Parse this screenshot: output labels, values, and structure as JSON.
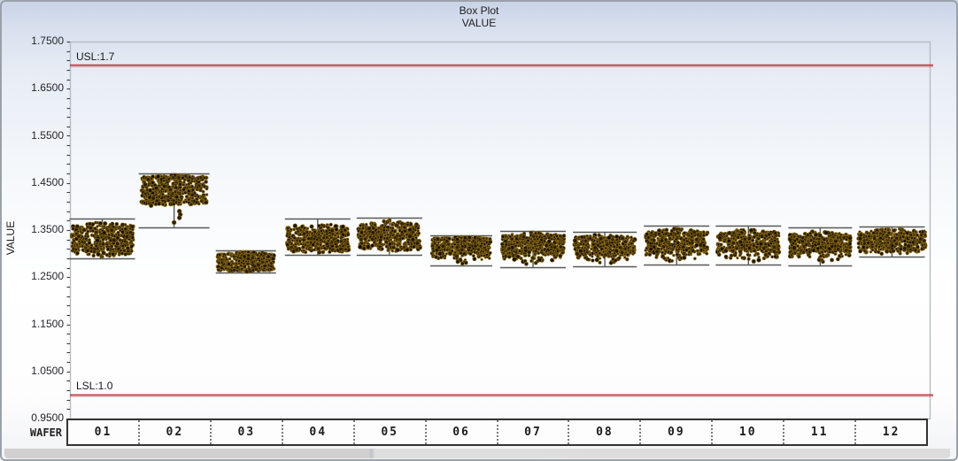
{
  "chart_data": {
    "type": "box-scatter",
    "title": "Box Plot",
    "subtitle": "VALUE",
    "ylabel": "VALUE",
    "xlabel": "WAFER",
    "ylim": [
      0.95,
      1.75
    ],
    "ytick_step": 0.1,
    "ytick_minor_step": 0.02,
    "ytick_labels": [
      "1.7500",
      "1.6500",
      "1.5500",
      "1.4500",
      "1.3500",
      "1.2500",
      "1.1500",
      "1.0500",
      "0.9500"
    ],
    "usl": {
      "label": "USL:1.7",
      "value": 1.7
    },
    "lsl": {
      "label": "LSL:1.0",
      "value": 1.0
    },
    "colors": {
      "spec_line": "#c1424e",
      "whisker": "#585858",
      "point_fills": [
        "#201604",
        "#2a1e06",
        "#171003",
        "#332508",
        "#241a05"
      ],
      "point_edge": "rgba(148,113,24,0.85)",
      "plot_border": "#b6bbc4",
      "tick": "#3a3a40"
    },
    "legend": "none",
    "grid": false,
    "wafers": [
      {
        "label": "01",
        "hi": 1.374,
        "lo": 1.289,
        "q3": 1.352,
        "q1": 1.306,
        "top": 1.37,
        "bot": 1.292,
        "n": 430,
        "capw": 74,
        "cloudw": 70,
        "outliers": []
      },
      {
        "label": "02",
        "hi": 1.47,
        "lo": 1.356,
        "q3": 1.458,
        "q1": 1.41,
        "top": 1.468,
        "bot": 1.402,
        "n": 480,
        "capw": 80,
        "cloudw": 74,
        "outliers": [
          [
            1.402,
            -26
          ],
          [
            1.39,
            6
          ],
          [
            1.383,
            7
          ],
          [
            1.376,
            6
          ],
          [
            1.366,
            0
          ]
        ]
      },
      {
        "label": "03",
        "hi": 1.307,
        "lo": 1.26,
        "q3": 1.296,
        "q1": 1.267,
        "top": 1.304,
        "bot": 1.262,
        "n": 350,
        "capw": 68,
        "cloudw": 64,
        "outliers": []
      },
      {
        "label": "04",
        "hi": 1.374,
        "lo": 1.297,
        "q3": 1.349,
        "q1": 1.31,
        "top": 1.368,
        "bot": 1.3,
        "n": 430,
        "capw": 74,
        "cloudw": 70,
        "outliers": []
      },
      {
        "label": "05",
        "hi": 1.376,
        "lo": 1.298,
        "q3": 1.354,
        "q1": 1.315,
        "top": 1.372,
        "bot": 1.302,
        "n": 430,
        "capw": 74,
        "cloudw": 70,
        "outliers": []
      },
      {
        "label": "06",
        "hi": 1.339,
        "lo": 1.275,
        "q3": 1.329,
        "q1": 1.299,
        "top": 1.336,
        "bot": 1.278,
        "n": 380,
        "capw": 70,
        "cloudw": 66,
        "outliers": []
      },
      {
        "label": "07",
        "hi": 1.349,
        "lo": 1.271,
        "q3": 1.335,
        "q1": 1.3,
        "top": 1.345,
        "bot": 1.275,
        "n": 420,
        "capw": 74,
        "cloudw": 70,
        "outliers": []
      },
      {
        "label": "08",
        "hi": 1.346,
        "lo": 1.273,
        "q3": 1.33,
        "q1": 1.298,
        "top": 1.342,
        "bot": 1.277,
        "n": 400,
        "capw": 72,
        "cloudw": 68,
        "outliers": []
      },
      {
        "label": "09",
        "hi": 1.359,
        "lo": 1.276,
        "q3": 1.34,
        "q1": 1.304,
        "top": 1.354,
        "bot": 1.28,
        "n": 420,
        "capw": 74,
        "cloudw": 70,
        "outliers": []
      },
      {
        "label": "10",
        "hi": 1.359,
        "lo": 1.276,
        "q3": 1.338,
        "q1": 1.304,
        "top": 1.354,
        "bot": 1.28,
        "n": 420,
        "capw": 74,
        "cloudw": 70,
        "outliers": []
      },
      {
        "label": "11",
        "hi": 1.356,
        "lo": 1.275,
        "q3": 1.334,
        "q1": 1.303,
        "top": 1.35,
        "bot": 1.28,
        "n": 400,
        "capw": 72,
        "cloudw": 68,
        "outliers": []
      },
      {
        "label": "12",
        "hi": 1.358,
        "lo": 1.293,
        "q3": 1.342,
        "q1": 1.31,
        "top": 1.354,
        "bot": 1.297,
        "n": 450,
        "capw": 74,
        "cloudw": 76,
        "outliers": []
      }
    ]
  }
}
